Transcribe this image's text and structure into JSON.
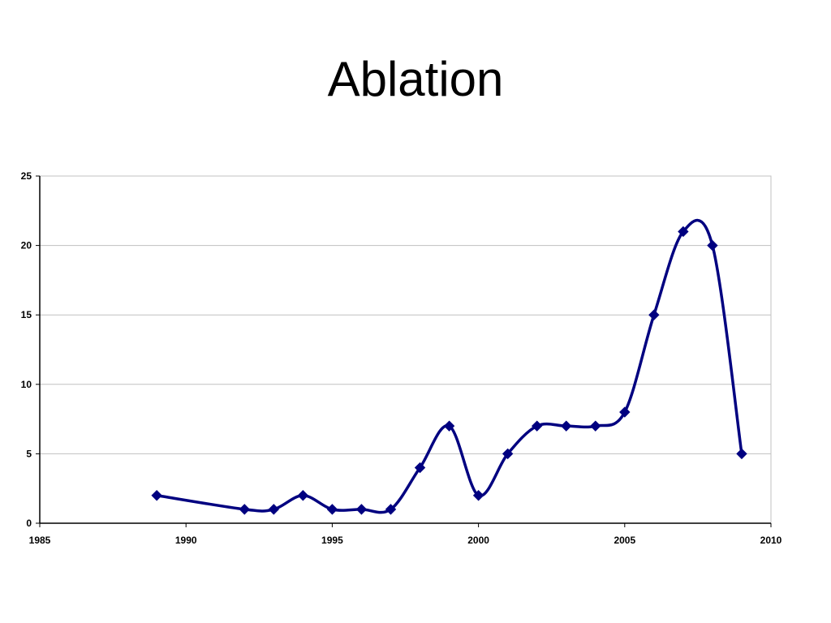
{
  "slide": {
    "title": "Ablation"
  },
  "chart_data": {
    "type": "line",
    "title": "",
    "xlabel": "",
    "ylabel": "",
    "xlim": [
      1985,
      2010
    ],
    "ylim": [
      0,
      25
    ],
    "x_ticks": [
      "1985",
      "1990",
      "1995",
      "2000",
      "2005",
      "2010"
    ],
    "y_ticks": [
      "0",
      "5",
      "10",
      "15",
      "20",
      "25"
    ],
    "grid": "horizontal",
    "smooth": true,
    "marker": "diamond",
    "series_color": "#000080",
    "series": [
      {
        "x": [
          1989,
          1992,
          1993,
          1994,
          1995,
          1996,
          1997,
          1998,
          1999,
          2000,
          2001,
          2002,
          2003,
          2004,
          2005,
          2006,
          2007,
          2008,
          2009
        ],
        "values": [
          2,
          1,
          1,
          2,
          1,
          1,
          1,
          4,
          7,
          2,
          5,
          7,
          7,
          7,
          8,
          15,
          21,
          20,
          5
        ]
      }
    ]
  }
}
